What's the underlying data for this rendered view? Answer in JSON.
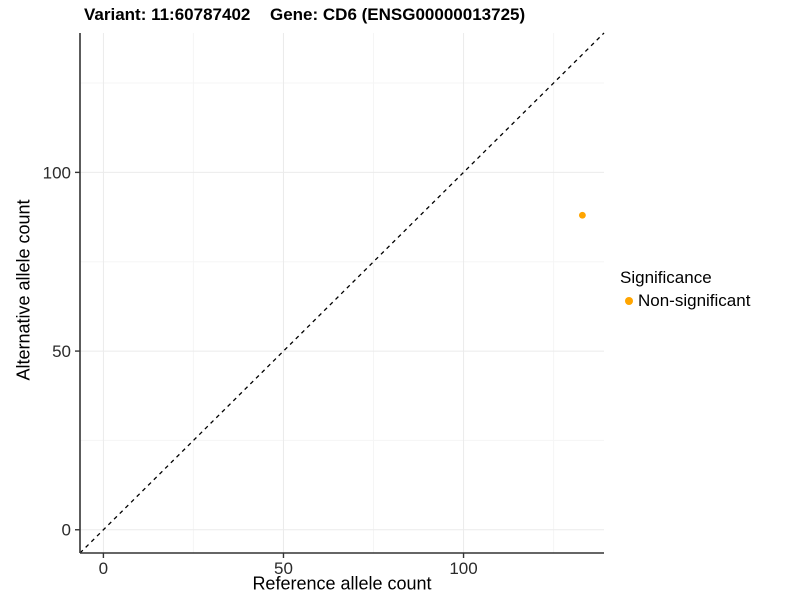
{
  "titles": {
    "variant": "Variant: 11:60787402",
    "gene": "Gene: CD6 (ENSG00000013725)"
  },
  "chart_data": {
    "type": "scatter",
    "title": "Variant: 11:60787402   Gene: CD6 (ENSG00000013725)",
    "xlabel": "Reference allele count",
    "ylabel": "Alternative allele count",
    "xlim": [
      -6.5,
      139
    ],
    "ylim": [
      -6.5,
      139
    ],
    "x_ticks": [
      0,
      50,
      100
    ],
    "y_ticks": [
      0,
      50,
      100
    ],
    "x_minor_ticks": [
      25,
      75,
      125
    ],
    "y_minor_ticks": [
      25,
      75,
      125
    ],
    "grid": "on",
    "reference_line": {
      "slope": 1,
      "intercept": 0,
      "style": "dashed",
      "color": "#000000"
    },
    "series": [
      {
        "name": "Non-significant",
        "color": "#FFA500",
        "points": [
          {
            "x": 133,
            "y": 88
          }
        ]
      }
    ],
    "legend": {
      "position": "right",
      "title": "Significance",
      "items": [
        {
          "label": "Non-significant",
          "color": "#FFA500"
        }
      ]
    },
    "colors": {
      "point": "#FFA500",
      "grid_major": "#ebebeb",
      "grid_minor": "#f5f5f5",
      "axis_line": "#333333",
      "tick_text": "#2b2b2b"
    }
  }
}
